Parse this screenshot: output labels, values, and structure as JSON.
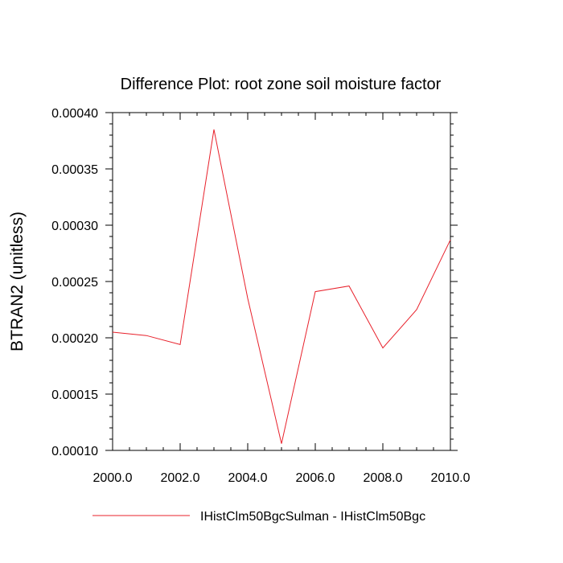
{
  "chart_data": {
    "type": "line",
    "title": "Difference Plot: root zone soil moisture factor",
    "xlabel": "",
    "ylabel": "BTRAN2  (unitless)",
    "xlim": [
      2000.0,
      2010.0
    ],
    "ylim": [
      0.0001,
      0.0004
    ],
    "xticks": [
      "2000.0",
      "2002.0",
      "2004.0",
      "2006.0",
      "2008.0",
      "2010.0"
    ],
    "yticks": [
      "0.00010",
      "0.00015",
      "0.00020",
      "0.00025",
      "0.00030",
      "0.00035",
      "0.00040"
    ],
    "grid": false,
    "legend_position": "bottom",
    "series": [
      {
        "name": "IHistClm50BgcSulman - IHistClm50Bgc",
        "color": "#e8212b",
        "x": [
          2000,
          2001,
          2002,
          2003,
          2004,
          2005,
          2006,
          2007,
          2008,
          2009,
          2010
        ],
        "y": [
          0.000205,
          0.000202,
          0.000194,
          0.000385,
          0.000235,
          0.000106,
          0.000241,
          0.000246,
          0.000191,
          0.000225,
          0.000287
        ]
      }
    ]
  }
}
